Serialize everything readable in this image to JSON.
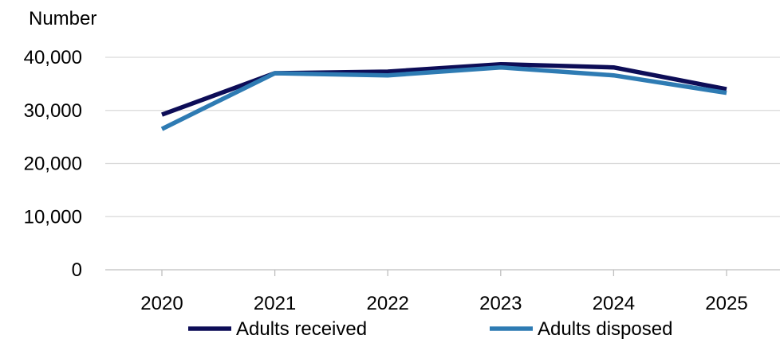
{
  "chart_data": {
    "type": "line",
    "ylabel": "Number",
    "x": [
      "2020",
      "2021",
      "2022",
      "2023",
      "2024",
      "2025"
    ],
    "ylim": [
      0,
      40000
    ],
    "yticks": [
      0,
      10000,
      20000,
      30000,
      40000
    ],
    "ytick_labels": [
      "0",
      "10,000",
      "20,000",
      "30,000",
      "40,000"
    ],
    "grid": true,
    "legend_position": "bottom",
    "series": [
      {
        "name": "Adults received",
        "color": "#0d0d57",
        "values": [
          29200,
          37000,
          37300,
          38700,
          38100,
          34000
        ]
      },
      {
        "name": "Adults disposed",
        "color": "#2e7bb3",
        "values": [
          26500,
          37000,
          36600,
          38100,
          36600,
          33300
        ]
      }
    ]
  }
}
